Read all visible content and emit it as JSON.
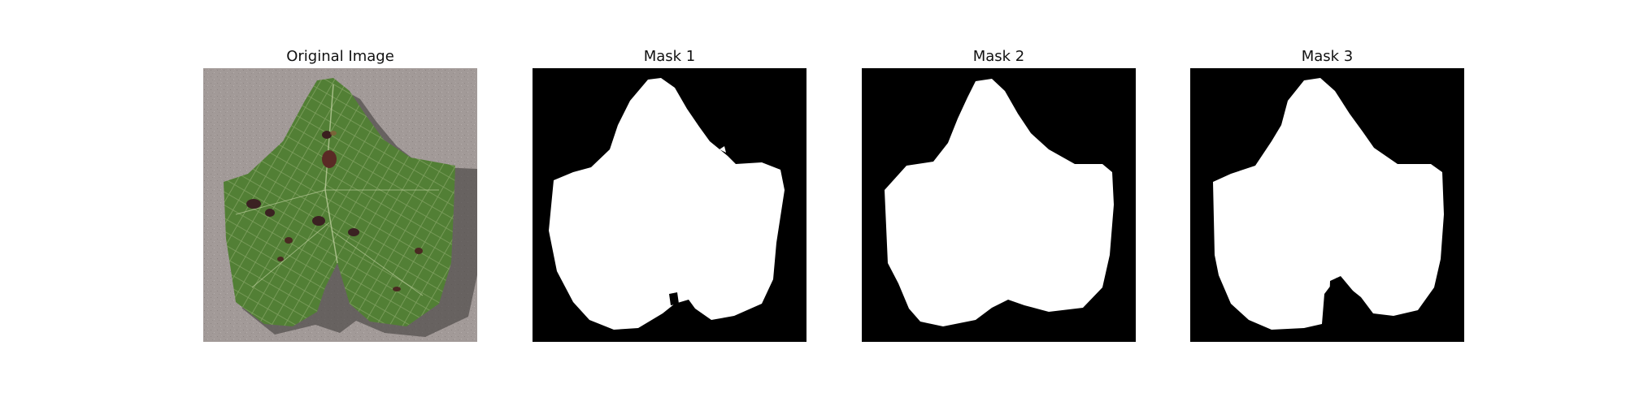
{
  "panels": [
    {
      "title": "Original Image"
    },
    {
      "title": "Mask 1"
    },
    {
      "title": "Mask 2"
    },
    {
      "title": "Mask 3"
    }
  ],
  "colors": {
    "background": "#ffffff",
    "mask_background": "#000000",
    "mask_foreground": "#ffffff",
    "leaf_green": "#4f7f33",
    "photo_background": "#a29a98"
  }
}
